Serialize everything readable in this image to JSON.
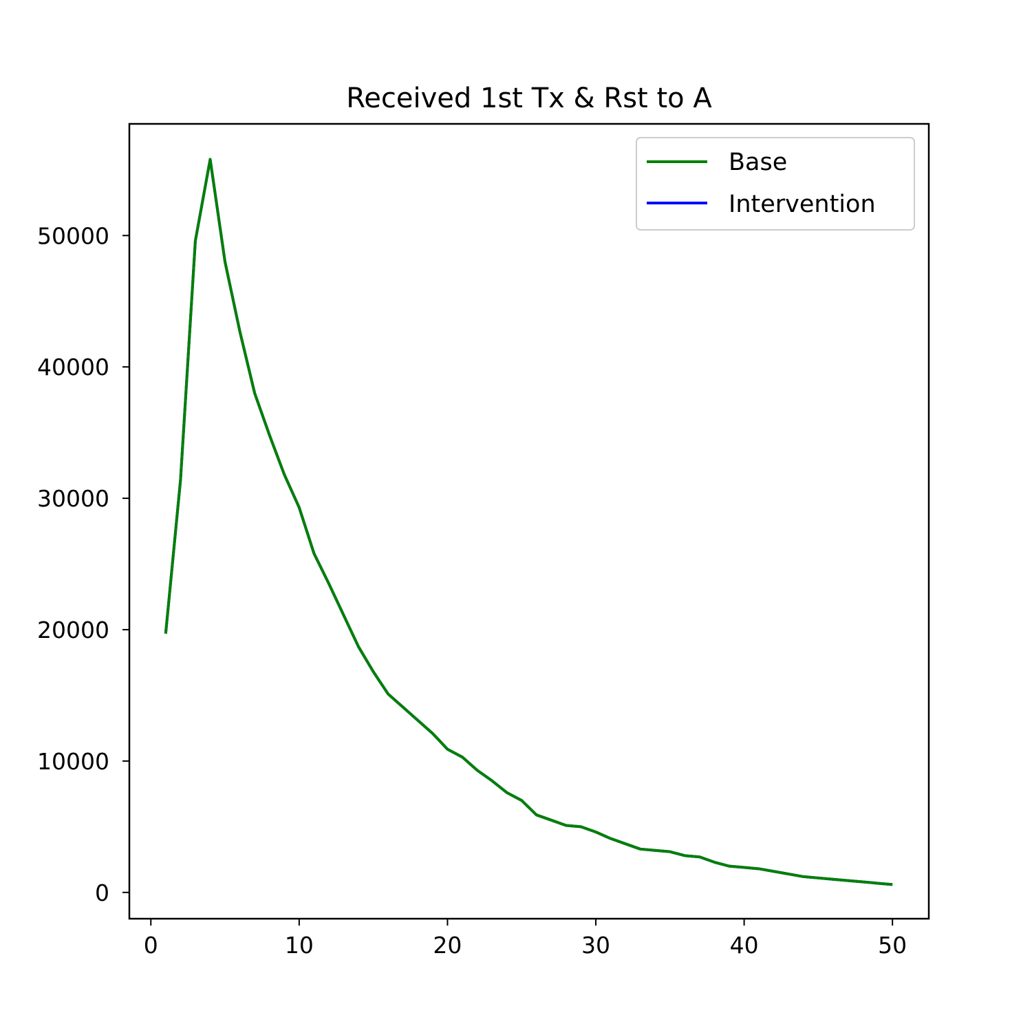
{
  "chart_data": {
    "type": "line",
    "title": "Received 1st Tx & Rst to A",
    "xlabel": "",
    "ylabel": "",
    "xlim": [
      -1.45,
      52.45
    ],
    "ylim": [
      -2000,
      58500
    ],
    "x_ticks": [
      0,
      10,
      20,
      30,
      40,
      50
    ],
    "y_ticks": [
      0,
      10000,
      20000,
      30000,
      40000,
      50000
    ],
    "grid": false,
    "legend": {
      "placement": "top-right",
      "entries": [
        {
          "label": "Base",
          "color": "#008000"
        },
        {
          "label": "Intervention",
          "color": "#0000ff"
        }
      ]
    },
    "x": [
      1,
      2,
      3,
      4,
      5,
      6,
      7,
      8,
      9,
      10,
      11,
      12,
      13,
      14,
      15,
      16,
      17,
      18,
      19,
      20,
      21,
      22,
      23,
      24,
      25,
      26,
      27,
      28,
      29,
      30,
      31,
      32,
      33,
      34,
      35,
      36,
      37,
      38,
      39,
      40,
      41,
      42,
      43,
      44,
      45,
      46,
      47,
      48,
      49,
      50
    ],
    "series": [
      {
        "name": "Intervention",
        "color": "#0000ff",
        "values": [
          19700,
          31400,
          49600,
          55800,
          48000,
          42700,
          38000,
          34800,
          31800,
          29300,
          25800,
          23500,
          21100,
          18700,
          16800,
          15100,
          14100,
          13100,
          12100,
          10900,
          10300,
          9300,
          8500,
          7600,
          7000,
          5900,
          5500,
          5100,
          5000,
          4600,
          4100,
          3700,
          3300,
          3200,
          3100,
          2800,
          2700,
          2300,
          2000,
          1900,
          1800,
          1600,
          1400,
          1200,
          1100,
          1000,
          900,
          800,
          700,
          600
        ]
      },
      {
        "name": "Base",
        "color": "#008000",
        "values": [
          19700,
          31400,
          49600,
          55800,
          48000,
          42700,
          38000,
          34800,
          31800,
          29300,
          25800,
          23500,
          21100,
          18700,
          16800,
          15100,
          14100,
          13100,
          12100,
          10900,
          10300,
          9300,
          8500,
          7600,
          7000,
          5900,
          5500,
          5100,
          5000,
          4600,
          4100,
          3700,
          3300,
          3200,
          3100,
          2800,
          2700,
          2300,
          2000,
          1900,
          1800,
          1600,
          1400,
          1200,
          1100,
          1000,
          900,
          800,
          700,
          600
        ]
      }
    ]
  }
}
